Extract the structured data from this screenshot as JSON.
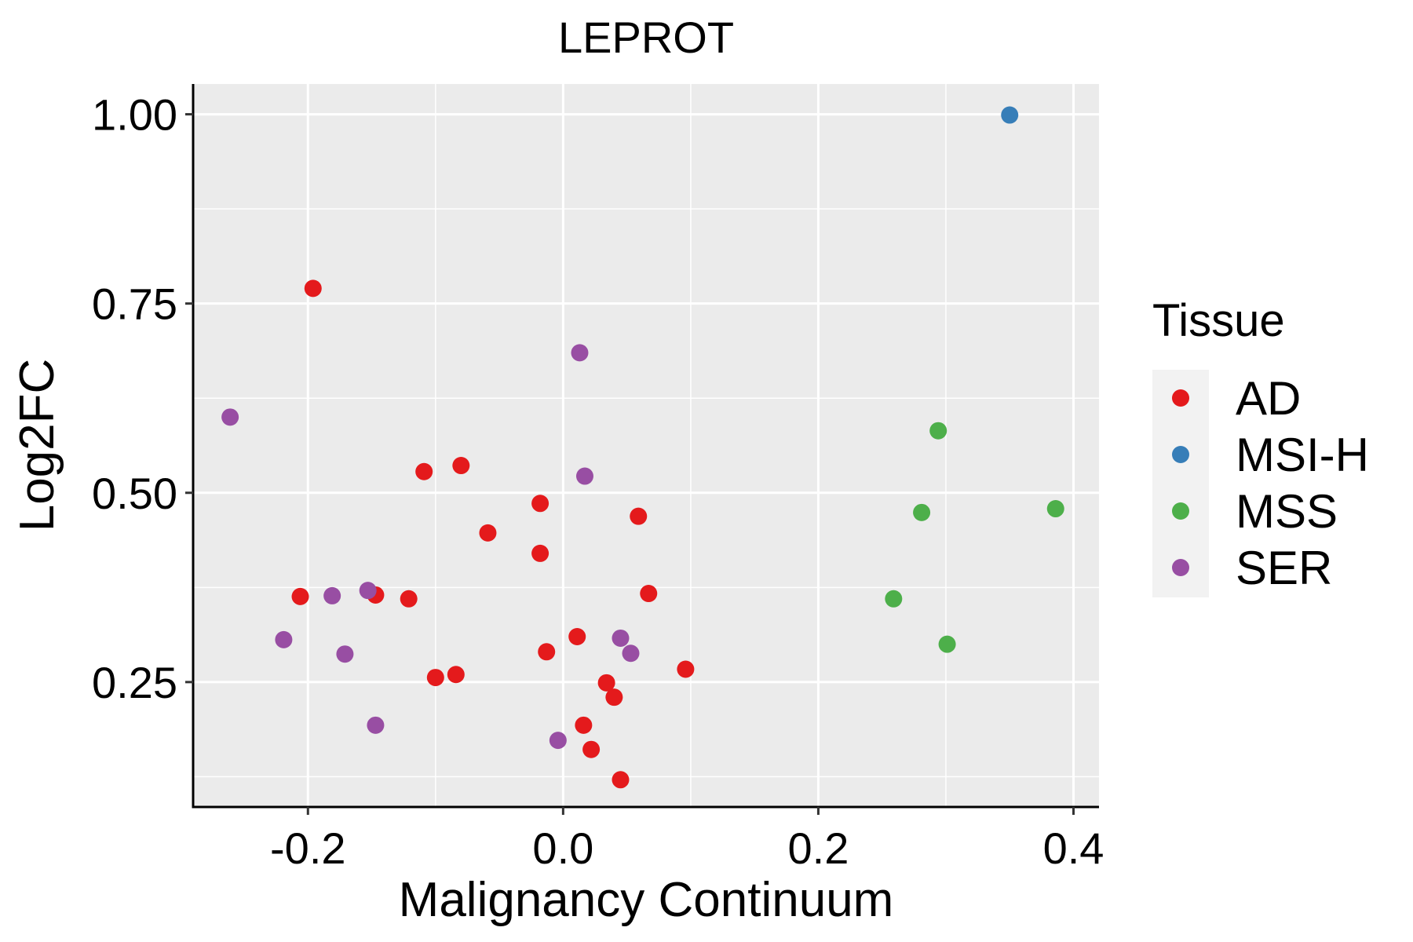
{
  "chart_data": {
    "type": "scatter",
    "title": "LEPROT",
    "xlabel": "Malignancy Continuum",
    "ylabel": "Log2FC",
    "xlim": [
      -0.29,
      0.42
    ],
    "ylim": [
      0.085,
      1.04
    ],
    "x_ticks": [
      -0.2,
      0.0,
      0.2,
      0.4
    ],
    "x_tick_labels": [
      "-0.2",
      "0.0",
      "0.2",
      "0.4"
    ],
    "y_ticks": [
      0.25,
      0.5,
      0.75,
      1.0
    ],
    "y_tick_labels": [
      "0.25",
      "0.50",
      "0.75",
      "1.00"
    ],
    "grid": true,
    "legend": {
      "title": "Tissue",
      "position": "right",
      "entries": [
        {
          "label": "AD",
          "color": "#E41A1C"
        },
        {
          "label": "MSI-H",
          "color": "#377EB8"
        },
        {
          "label": "MSS",
          "color": "#4DAF4A"
        },
        {
          "label": "SER",
          "color": "#984EA3"
        }
      ]
    },
    "series": [
      {
        "name": "AD",
        "color": "#E41A1C",
        "points": [
          {
            "x": -0.196,
            "y": 0.77
          },
          {
            "x": -0.206,
            "y": 0.363
          },
          {
            "x": -0.147,
            "y": 0.365
          },
          {
            "x": -0.121,
            "y": 0.36
          },
          {
            "x": -0.109,
            "y": 0.528
          },
          {
            "x": -0.08,
            "y": 0.536
          },
          {
            "x": -0.1,
            "y": 0.256
          },
          {
            "x": -0.084,
            "y": 0.26
          },
          {
            "x": -0.059,
            "y": 0.447
          },
          {
            "x": -0.018,
            "y": 0.486
          },
          {
            "x": -0.018,
            "y": 0.42
          },
          {
            "x": -0.013,
            "y": 0.29
          },
          {
            "x": 0.011,
            "y": 0.31
          },
          {
            "x": 0.034,
            "y": 0.249
          },
          {
            "x": 0.04,
            "y": 0.23
          },
          {
            "x": 0.016,
            "y": 0.193
          },
          {
            "x": 0.022,
            "y": 0.161
          },
          {
            "x": 0.045,
            "y": 0.121
          },
          {
            "x": 0.059,
            "y": 0.469
          },
          {
            "x": 0.067,
            "y": 0.367
          },
          {
            "x": 0.096,
            "y": 0.267
          }
        ]
      },
      {
        "name": "MSI-H",
        "color": "#377EB8",
        "points": [
          {
            "x": 0.35,
            "y": 0.999
          }
        ]
      },
      {
        "name": "MSS",
        "color": "#4DAF4A",
        "points": [
          {
            "x": 0.294,
            "y": 0.582
          },
          {
            "x": 0.281,
            "y": 0.474
          },
          {
            "x": 0.386,
            "y": 0.479
          },
          {
            "x": 0.259,
            "y": 0.36
          },
          {
            "x": 0.301,
            "y": 0.3
          }
        ]
      },
      {
        "name": "SER",
        "color": "#984EA3",
        "points": [
          {
            "x": -0.261,
            "y": 0.6
          },
          {
            "x": -0.219,
            "y": 0.306
          },
          {
            "x": -0.181,
            "y": 0.364
          },
          {
            "x": -0.153,
            "y": 0.371
          },
          {
            "x": -0.171,
            "y": 0.287
          },
          {
            "x": -0.147,
            "y": 0.193
          },
          {
            "x": 0.013,
            "y": 0.685
          },
          {
            "x": 0.017,
            "y": 0.522
          },
          {
            "x": 0.045,
            "y": 0.308
          },
          {
            "x": 0.053,
            "y": 0.288
          },
          {
            "x": -0.004,
            "y": 0.173
          }
        ]
      }
    ]
  }
}
